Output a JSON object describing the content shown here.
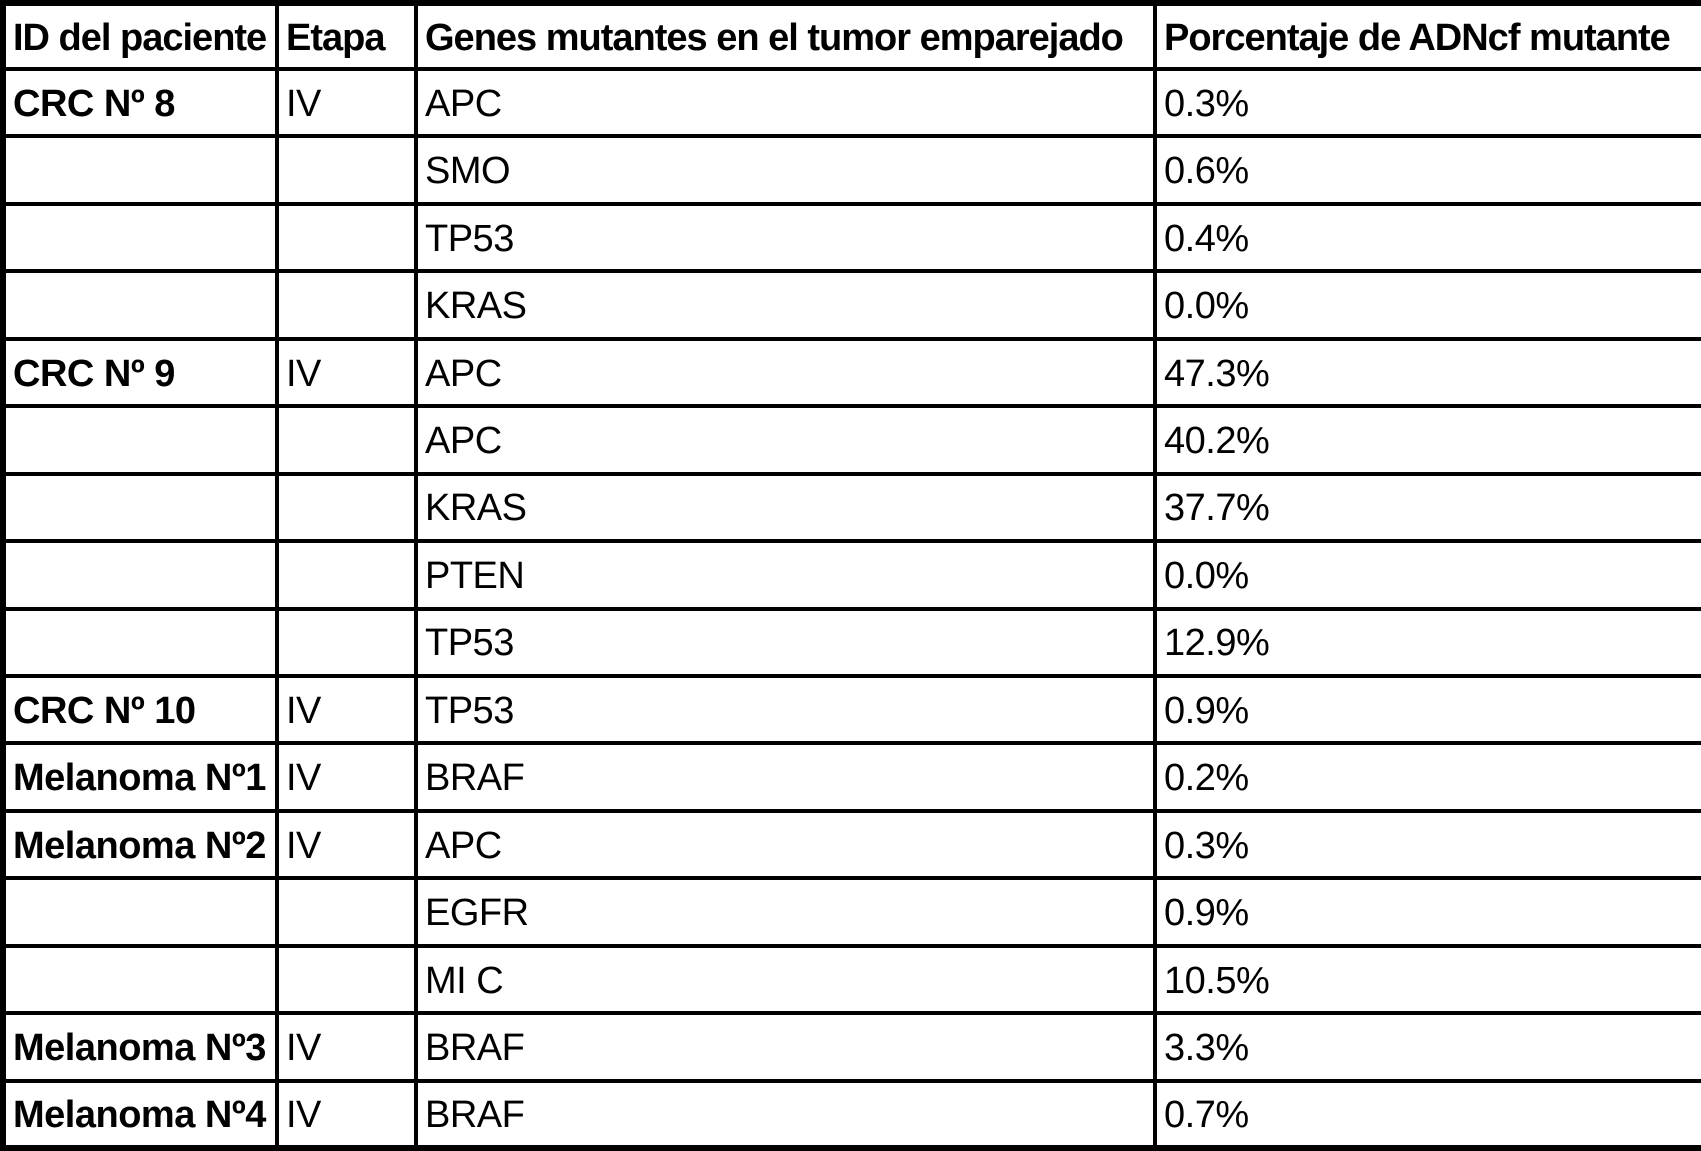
{
  "colors": {
    "border": "#000000",
    "background": "#ffffff",
    "text": "#000000"
  },
  "table": {
    "headers": {
      "patient_id": "ID del paciente",
      "stage": "Etapa",
      "genes": "Genes mutantes en el tumor emparejado",
      "percentage": "Porcentaje de ADNcf mutante"
    },
    "rows": [
      {
        "patient_id": "CRC Nº 8",
        "stage": "IV",
        "gene": "APC",
        "percentage": "0.3%"
      },
      {
        "patient_id": "",
        "stage": "",
        "gene": "SMO",
        "percentage": "0.6%"
      },
      {
        "patient_id": "",
        "stage": "",
        "gene": "TP53",
        "percentage": "0.4%"
      },
      {
        "patient_id": "",
        "stage": "",
        "gene": "KRAS",
        "percentage": "0.0%"
      },
      {
        "patient_id": "CRC Nº 9",
        "stage": "IV",
        "gene": "APC",
        "percentage": "47.3%"
      },
      {
        "patient_id": "",
        "stage": "",
        "gene": "APC",
        "percentage": "40.2%"
      },
      {
        "patient_id": "",
        "stage": "",
        "gene": "KRAS",
        "percentage": "37.7%"
      },
      {
        "patient_id": "",
        "stage": "",
        "gene": "PTEN",
        "percentage": "0.0%"
      },
      {
        "patient_id": "",
        "stage": "",
        "gene": "TP53",
        "percentage": "12.9%"
      },
      {
        "patient_id": "CRC Nº 10",
        "stage": "IV",
        "gene": "TP53",
        "percentage": "0.9%"
      },
      {
        "patient_id": "Melanoma Nº1",
        "stage": "IV",
        "gene": "BRAF",
        "percentage": "0.2%"
      },
      {
        "patient_id": "Melanoma Nº2",
        "stage": "IV",
        "gene": "APC",
        "percentage": "0.3%"
      },
      {
        "patient_id": "",
        "stage": "",
        "gene": "EGFR",
        "percentage": "0.9%"
      },
      {
        "patient_id": "",
        "stage": "",
        "gene": "MI C",
        "percentage": "10.5%"
      },
      {
        "patient_id": "Melanoma Nº3",
        "stage": "IV",
        "gene": "BRAF",
        "percentage": "3.3%"
      },
      {
        "patient_id": "Melanoma Nº4",
        "stage": "IV",
        "gene": "BRAF",
        "percentage": "0.7%"
      }
    ]
  }
}
